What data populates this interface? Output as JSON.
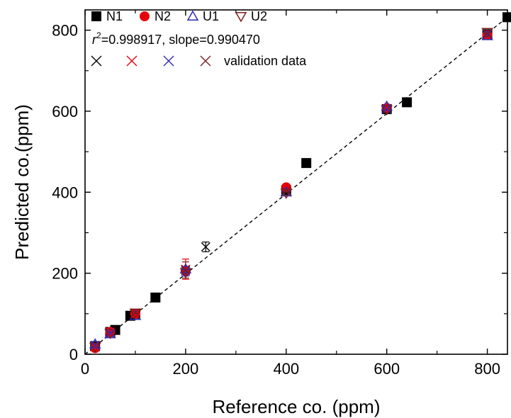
{
  "chart_data": {
    "type": "scatter",
    "xlabel": "Reference co. (ppm)",
    "ylabel": "Predicted co.(ppm)",
    "xlim": [
      0,
      840
    ],
    "ylim": [
      0,
      850
    ],
    "x_ticks": [
      0,
      200,
      400,
      600,
      800
    ],
    "y_ticks": [
      0,
      200,
      400,
      600,
      800
    ],
    "grid": false,
    "legend_position": "top-left",
    "fit_line": {
      "style": "dashed",
      "color": "#000000",
      "x": [
        0,
        840
      ],
      "y": [
        0,
        832
      ]
    },
    "stats_prefix": "r",
    "stats_exp": "2",
    "stats_text": "=0.998917, slope=0.990470",
    "validation_label": "validation data",
    "series": [
      {
        "name": "N1",
        "marker": "filled-square",
        "color": "#000000",
        "x": [
          20,
          50,
          60,
          90,
          100,
          140,
          400,
          440,
          600,
          640,
          800,
          840
        ],
        "y": [
          20,
          55,
          60,
          95,
          100,
          140,
          405,
          472,
          605,
          622,
          790,
          832
        ]
      },
      {
        "name": "N2",
        "marker": "filled-circle",
        "color": "#e8000b",
        "x": [
          20,
          50,
          100,
          200,
          400,
          600,
          800
        ],
        "y": [
          15,
          55,
          100,
          205,
          412,
          608,
          788
        ]
      },
      {
        "name": "U1",
        "marker": "open-triangle-up",
        "color": "#2b2bb5",
        "x": [
          20,
          50,
          100,
          200,
          400,
          600,
          800
        ],
        "y": [
          25,
          50,
          95,
          210,
          400,
          612,
          786
        ]
      },
      {
        "name": "U2",
        "marker": "open-triangle-down",
        "color": "#7a1c1c",
        "x": [
          20,
          50,
          100,
          200,
          400,
          600,
          800
        ],
        "y": [
          18,
          52,
          102,
          202,
          398,
          604,
          795
        ]
      }
    ],
    "validation": [
      {
        "marker": "x",
        "color": "#000000",
        "x": [
          240
        ],
        "y": [
          265
        ],
        "err": [
          12
        ]
      },
      {
        "marker": "x",
        "color": "#e8000b",
        "x": [
          200,
          20,
          50,
          100
        ],
        "y": [
          210,
          20,
          55,
          100
        ],
        "err": [
          25,
          0,
          0,
          0
        ]
      },
      {
        "marker": "x",
        "color": "#2b2bb5",
        "x": [
          200,
          20,
          50,
          600,
          800
        ],
        "y": [
          205,
          22,
          52,
          605,
          790
        ],
        "err": [
          12,
          0,
          0,
          0,
          0
        ]
      },
      {
        "marker": "x",
        "color": "#7a1c1c",
        "x": [
          200,
          100,
          400,
          800
        ],
        "y": [
          208,
          102,
          402,
          792
        ],
        "err": [
          20,
          0,
          0,
          0
        ]
      }
    ]
  }
}
